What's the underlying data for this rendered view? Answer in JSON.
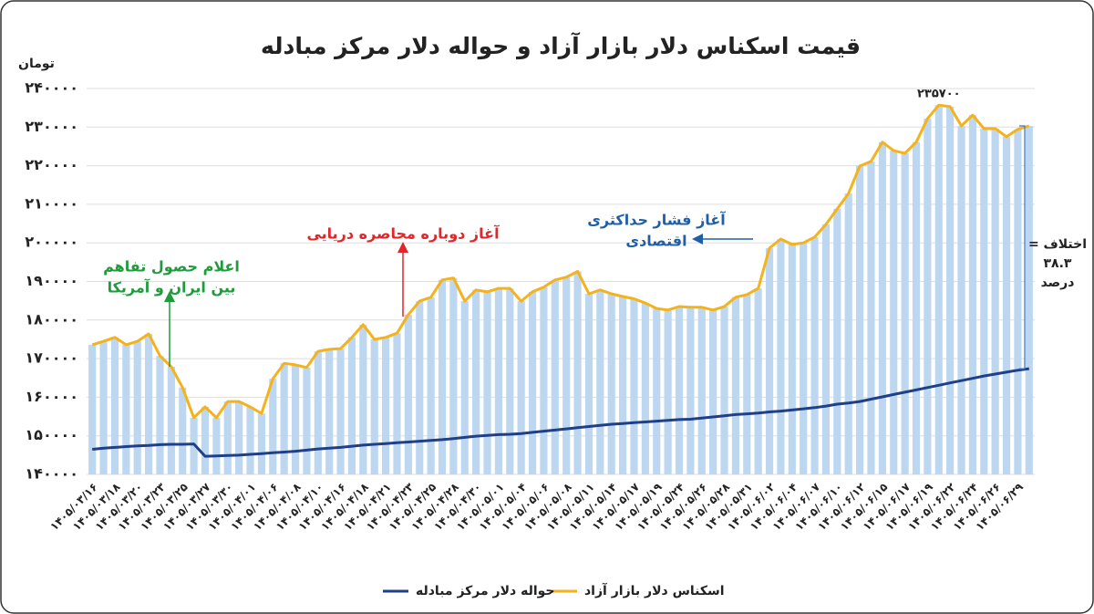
{
  "chart_data": {
    "type": "bar-line",
    "title": "قیمت اسکناس دلار بازار آزاد و حواله دلار مرکز مبادله",
    "y_unit": "تومان",
    "categories": [
      "۱۴۰۵/۰۳/۱۶",
      null,
      "۱۴۰۵/۰۳/۱۸",
      null,
      "۱۴۰۵/۰۳/۲۰",
      null,
      "۱۴۰۵/۰۳/۲۳",
      null,
      "۱۴۰۵/۰۳/۲۵",
      null,
      "۱۴۰۵/۰۳/۲۷",
      null,
      "۱۴۰۵/۰۳/۳۰",
      null,
      "۱۴۰۵/۰۴/۰۱",
      null,
      "۱۴۰۵/۰۴/۰۶",
      null,
      "۱۴۰۵/۰۴/۰۸",
      null,
      "۱۴۰۵/۰۴/۱۰",
      null,
      "۱۴۰۵/۰۴/۱۶",
      null,
      "۱۴۰۵/۰۴/۱۸",
      null,
      "۱۴۰۵/۰۴/۲۱",
      null,
      "۱۴۰۵/۰۴/۲۳",
      null,
      "۱۴۰۵/۰۴/۲۵",
      null,
      "۱۴۰۵/۰۴/۲۸",
      null,
      "۱۴۰۵/۰۴/۳۰",
      null,
      "۱۴۰۵/۰۵/۰۱",
      null,
      "۱۴۰۵/۰۵/۰۴",
      null,
      "۱۴۰۵/۰۵/۰۶",
      null,
      "۱۴۰۵/۰۵/۰۸",
      null,
      "۱۴۰۵/۰۵/۱۱",
      null,
      "۱۴۰۵/۰۵/۱۴",
      null,
      "۱۴۰۵/۰۵/۱۷",
      null,
      "۱۴۰۵/۰۵/۱۹",
      null,
      "۱۴۰۵/۰۵/۲۴",
      null,
      "۱۴۰۵/۰۵/۲۶",
      null,
      "۱۴۰۵/۰۵/۲۸",
      null,
      "۱۴۰۵/۰۵/۳۱",
      null,
      "۱۴۰۵/۰۶/۰۲",
      null,
      "۱۴۰۵/۰۶/۰۴",
      null,
      "۱۴۰۵/۰۶/۰۷",
      null,
      "۱۴۰۵/۰۶/۱۰",
      null,
      "۱۴۰۵/۰۶/۱۲",
      null,
      "۱۴۰۵/۰۶/۱۵",
      null,
      "۱۴۰۵/۰۶/۱۷",
      null,
      "۱۴۰۵/۰۶/۱۹",
      null,
      "۱۴۰۵/۰۶/۲۲",
      null,
      "۱۴۰۵/۰۶/۲۴",
      null,
      "۱۴۰۵/۰۶/۲۶",
      null,
      "۱۴۰۵/۰۶/۲۹",
      null
    ],
    "series": [
      {
        "name": "اسکناس دلار بازار آزاد",
        "color": "#f5b21b",
        "bar_color": "#bdd7f1",
        "values": [
          173600,
          174500,
          175500,
          173600,
          174500,
          176400,
          170700,
          167900,
          162500,
          154700,
          157500,
          154700,
          158900,
          158900,
          157500,
          155800,
          164800,
          168800,
          168400,
          167700,
          171900,
          172400,
          172600,
          175500,
          178800,
          175000,
          175500,
          176600,
          181400,
          184900,
          185900,
          190400,
          190900,
          184900,
          187800,
          187300,
          188200,
          188200,
          184900,
          187300,
          188500,
          190400,
          191100,
          192600,
          186800,
          187800,
          186800,
          186100,
          185500,
          184400,
          183000,
          182600,
          183500,
          183300,
          183300,
          182600,
          183500,
          185900,
          186600,
          188200,
          198600,
          201000,
          199600,
          200000,
          201500,
          204800,
          208800,
          212800,
          219900,
          221100,
          226100,
          223900,
          223200,
          226100,
          232200,
          235700,
          235300,
          230300,
          233100,
          229600,
          229600,
          227500,
          229400,
          230300
        ]
      },
      {
        "name": "حواله دلار مرکز مبادله",
        "color": "#1f3f86",
        "values": [
          146500,
          146800,
          147000,
          147200,
          147400,
          147500,
          147700,
          147800,
          147800,
          147900,
          144700,
          144800,
          144900,
          145000,
          145200,
          145400,
          145600,
          145800,
          146000,
          146300,
          146600,
          146800,
          147000,
          147300,
          147600,
          147800,
          148000,
          148200,
          148400,
          148600,
          148800,
          149000,
          149300,
          149600,
          149900,
          150100,
          150300,
          150400,
          150600,
          150900,
          151200,
          151500,
          151800,
          152100,
          152400,
          152700,
          153000,
          153200,
          153400,
          153600,
          153800,
          154000,
          154200,
          154300,
          154600,
          154900,
          155200,
          155500,
          155700,
          155900,
          156200,
          156400,
          156700,
          157000,
          157300,
          157700,
          158200,
          158500,
          158900,
          159500,
          160100,
          160700,
          161300,
          161900,
          162500,
          163100,
          163700,
          164300,
          164900,
          165500,
          166000,
          166500,
          167000,
          167400
        ]
      }
    ],
    "ylim": [
      140000,
      240000
    ],
    "yticks": [
      {
        "value": 140000,
        "label": "۱۴۰۰۰۰"
      },
      {
        "value": 150000,
        "label": "۱۵۰۰۰۰"
      },
      {
        "value": 160000,
        "label": "۱۶۰۰۰۰"
      },
      {
        "value": 170000,
        "label": "۱۷۰۰۰۰"
      },
      {
        "value": 180000,
        "label": "۱۸۰۰۰۰"
      },
      {
        "value": 190000,
        "label": "۱۹۰۰۰۰"
      },
      {
        "value": 200000,
        "label": "۲۰۰۰۰۰"
      },
      {
        "value": 210000,
        "label": "۲۱۰۰۰۰"
      },
      {
        "value": 220000,
        "label": "۲۲۰۰۰۰"
      },
      {
        "value": 230000,
        "label": "۲۳۰۰۰۰"
      },
      {
        "value": 240000,
        "label": "۲۴۰۰۰۰"
      }
    ],
    "grid": true,
    "legend": "bottom",
    "peak_label": "۲۳۵۷۰۰",
    "annotations": [
      {
        "lines": [
          "اعلام حصول تفاهم",
          "بین ایران و آمریکا"
        ],
        "color": "#1e9c3c"
      },
      {
        "lines": [
          "آغاز دوباره محاصره دریایی"
        ],
        "color": "#e0262b"
      },
      {
        "lines": [
          "آغاز فشار حداکثری",
          "اقتصادی"
        ],
        "color": "#1f5fa8"
      }
    ],
    "difference_note": [
      "اختلاف =",
      "۳۸.۳",
      "درصد"
    ]
  }
}
